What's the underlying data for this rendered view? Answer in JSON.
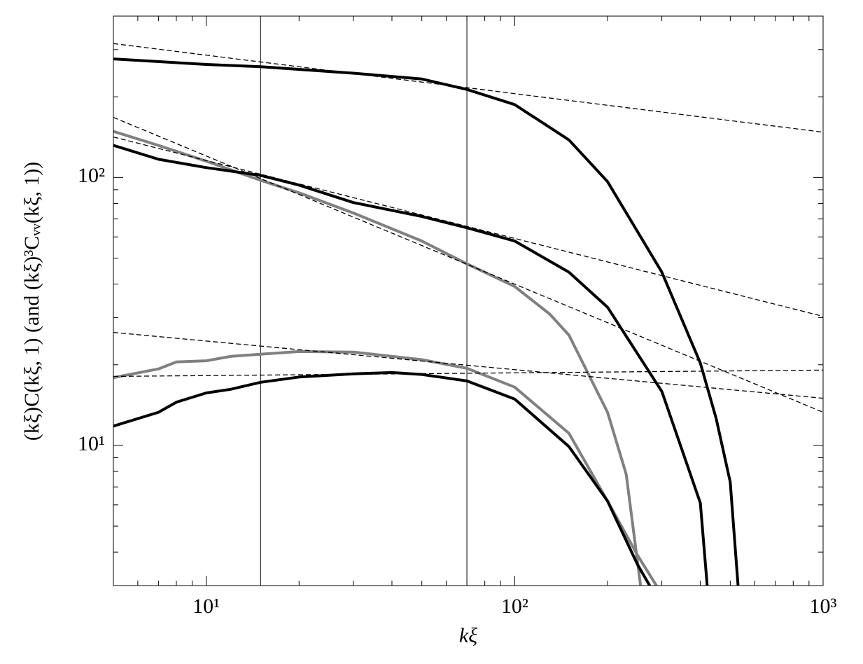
{
  "chart_data": {
    "type": "line",
    "xlabel": "kξ",
    "ylabel": "(kξ)C(kξ, 1) (and (kξ)³Cᵥᵥ(kξ, 1))",
    "xscale": "log",
    "yscale": "log",
    "xlim": [
      5,
      1000
    ],
    "ylim": [
      3,
      400
    ],
    "xticks": [
      {
        "value": 10,
        "label": "10¹"
      },
      {
        "value": 100,
        "label": "10²"
      },
      {
        "value": 1000,
        "label": "10³"
      }
    ],
    "yticks": [
      {
        "value": 10,
        "label": "10¹"
      },
      {
        "value": 100,
        "label": "10²"
      }
    ],
    "xminorticks": [
      6,
      7,
      8,
      9,
      20,
      30,
      40,
      50,
      60,
      70,
      80,
      90,
      200,
      300,
      400,
      500,
      600,
      700,
      800,
      900
    ],
    "yminorticks": [
      4,
      5,
      6,
      7,
      8,
      9,
      20,
      30,
      40,
      50,
      60,
      70,
      80,
      90,
      200,
      300,
      400
    ],
    "vlines": [
      15,
      70
    ],
    "series": [
      {
        "color": "#000000",
        "style": "solid",
        "x": [
          5,
          10,
          15,
          30,
          50,
          70,
          100,
          150,
          200,
          300,
          400,
          450,
          500,
          530
        ],
        "values": [
          277,
          264,
          259,
          245,
          233,
          213,
          187,
          138,
          96.5,
          44.3,
          20.3,
          12.6,
          7.3,
          3
        ]
      },
      {
        "color": "#808080",
        "style": "solid",
        "x": [
          5,
          7,
          10,
          15,
          20,
          30,
          50,
          70,
          100,
          130,
          150,
          200,
          230,
          256
        ],
        "values": [
          148.6,
          131.7,
          115,
          97.6,
          87.6,
          73.7,
          57.9,
          47.6,
          39.2,
          30.9,
          25.8,
          13.3,
          7.8,
          3
        ]
      },
      {
        "color": "#000000",
        "style": "solid",
        "x": [
          5,
          7,
          10,
          15,
          20,
          30,
          50,
          70,
          100,
          150,
          200,
          300,
          400,
          421
        ],
        "values": [
          131.8,
          116.9,
          108.8,
          101.8,
          93.6,
          80.6,
          71.5,
          64.9,
          57.9,
          44.3,
          32.8,
          15.9,
          6.1,
          3
        ]
      },
      {
        "color": "#808080",
        "style": "solid",
        "x": [
          5,
          7,
          8,
          10,
          12,
          15,
          20,
          30,
          50,
          70,
          100,
          150,
          200,
          250,
          288
        ],
        "values": [
          17.9,
          19.3,
          20.5,
          20.7,
          21.5,
          21.9,
          22.4,
          22.3,
          20.9,
          19.4,
          16.5,
          11.1,
          6.2,
          3.9,
          3
        ]
      },
      {
        "color": "#000000",
        "style": "solid",
        "x": [
          5,
          7,
          8,
          10,
          12,
          15,
          20,
          30,
          40,
          50,
          70,
          100,
          150,
          200,
          250,
          274
        ],
        "values": [
          11.8,
          13.3,
          14.5,
          15.7,
          16.2,
          17.2,
          18.0,
          18.5,
          18.7,
          18.4,
          17.4,
          14.9,
          9.9,
          6.2,
          3.6,
          3
        ]
      },
      {
        "color": "#000000",
        "style": "dashed",
        "x": [
          5,
          1000
        ],
        "values": [
          316,
          147.6
        ]
      },
      {
        "color": "#000000",
        "style": "dashed",
        "x": [
          5,
          1000
        ],
        "values": [
          167.5,
          13.3
        ]
      },
      {
        "color": "#000000",
        "style": "dashed",
        "x": [
          5,
          1000
        ],
        "values": [
          141.6,
          30.3
        ]
      },
      {
        "color": "#000000",
        "style": "dashed",
        "x": [
          5,
          1000
        ],
        "values": [
          26.4,
          15.0
        ]
      },
      {
        "color": "#000000",
        "style": "dashed",
        "x": [
          5,
          1000
        ],
        "values": [
          18.1,
          19.1
        ]
      }
    ]
  }
}
